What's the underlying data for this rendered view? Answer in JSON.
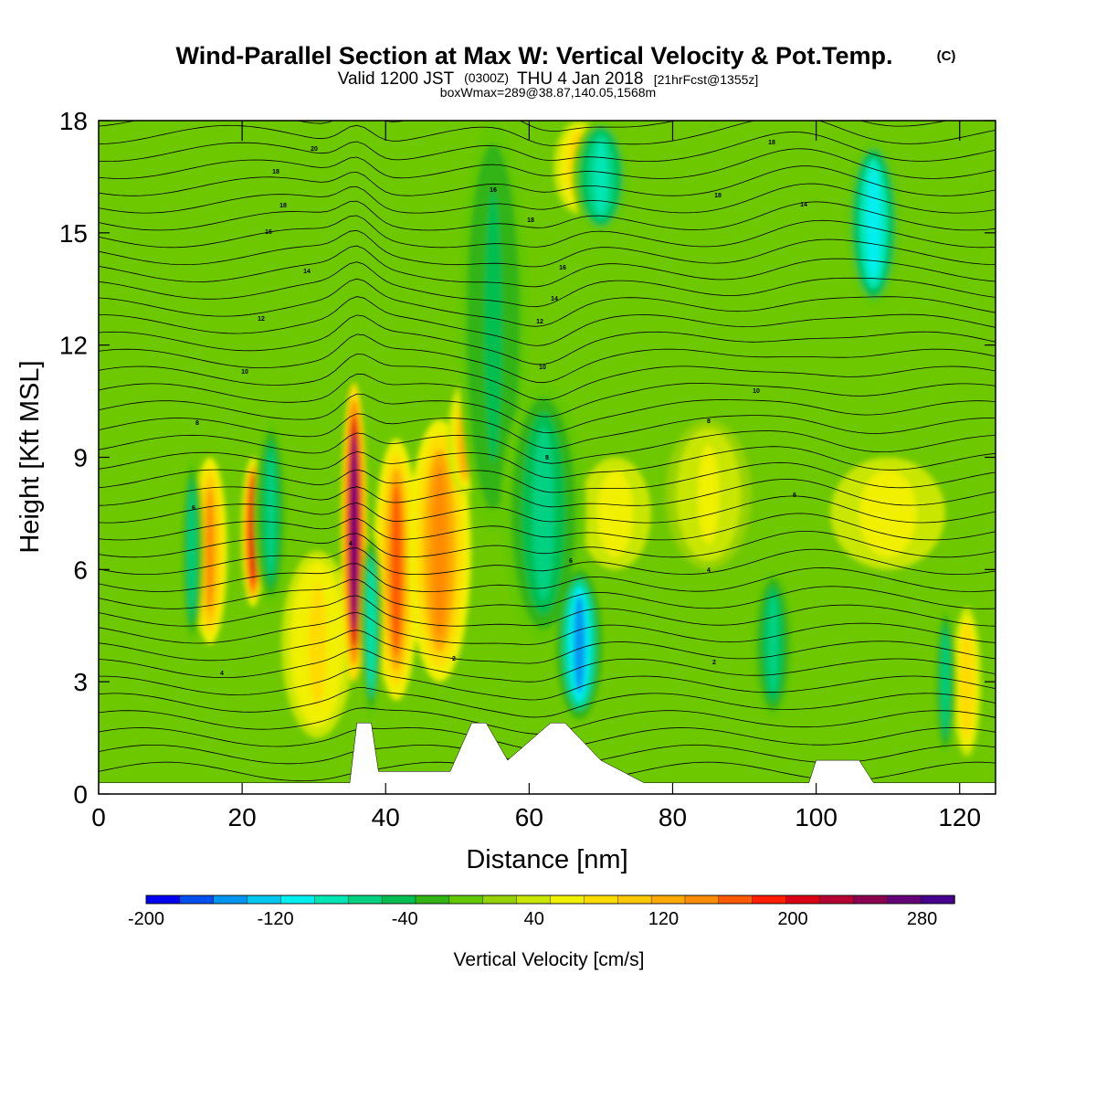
{
  "chart_data": {
    "type": "heatmap",
    "title": "Wind-Parallel Section at Max W: Vertical Velocity & Pot.Temp.",
    "title_mark": "(C)",
    "subtitle_parts": [
      "Valid 1200 JST",
      "(0300Z)",
      "THU 4 Jan 2018",
      "[21hrFcst@1355z]"
    ],
    "subtitle2": "boxWmax=289@38.87,140.05,1568m",
    "xlabel": "Distance [nm]",
    "ylabel": "Height [Kft MSL]",
    "xlim": [
      0,
      125
    ],
    "ylim": [
      0,
      18
    ],
    "xticks": [
      "0",
      "20",
      "40",
      "60",
      "80",
      "100",
      "120"
    ],
    "yticks": [
      "0",
      "3",
      "6",
      "9",
      "12",
      "15",
      "18"
    ],
    "colorbar_label": "Vertical Velocity [cm/s]",
    "colorbar_ticks": [
      "-200",
      "-120",
      "-40",
      "40",
      "120",
      "200",
      "280"
    ],
    "colorbar_range": [
      -200,
      300
    ],
    "colorbar_colors": [
      "#0000f0",
      "#0050f0",
      "#0096f0",
      "#00c8f0",
      "#00f0f0",
      "#00e6b4",
      "#00d282",
      "#00be50",
      "#32b414",
      "#64c800",
      "#96d200",
      "#c8e600",
      "#f0f000",
      "#ffdc00",
      "#ffc800",
      "#ffaa00",
      "#ff8c00",
      "#ff5a00",
      "#ff1e00",
      "#dc0014",
      "#b40032",
      "#8c0050",
      "#640078",
      "#46008c"
    ],
    "background_vv": 20,
    "updrafts": [
      {
        "x": 15.5,
        "z0": 4.0,
        "z1": 9.0,
        "w": 1.2,
        "v": 140
      },
      {
        "x": 21.5,
        "z0": 5.0,
        "z1": 9.0,
        "w": 0.8,
        "v": 210
      },
      {
        "x": 30.5,
        "z0": 1.5,
        "z1": 6.5,
        "w": 2.5,
        "v": 80
      },
      {
        "x": 35.6,
        "z0": 3.0,
        "z1": 11.0,
        "w": 0.9,
        "v": 260
      },
      {
        "x": 41.5,
        "z0": 2.5,
        "z1": 9.5,
        "w": 1.6,
        "v": 160
      },
      {
        "x": 47.5,
        "z0": 3.0,
        "z1": 10.0,
        "w": 2.2,
        "v": 150
      },
      {
        "x": 51.0,
        "z0": 8.0,
        "z1": 11.0,
        "w": 1.2,
        "v": 120
      },
      {
        "x": 67.0,
        "z0": 15.5,
        "z1": 18.0,
        "w": 1.8,
        "v": 100
      },
      {
        "x": 72.0,
        "z0": 6.0,
        "z1": 9.0,
        "w": 2.5,
        "v": 70
      },
      {
        "x": 85.0,
        "z0": 6.0,
        "z1": 10.0,
        "w": 3.0,
        "v": 50
      },
      {
        "x": 110.0,
        "z0": 6.0,
        "z1": 9.0,
        "w": 4.0,
        "v": 60
      },
      {
        "x": 121.0,
        "z0": 1.0,
        "z1": 5.0,
        "w": 1.0,
        "v": 90
      }
    ],
    "downdrafts": [
      {
        "x": 13.0,
        "z0": 4.0,
        "z1": 9.0,
        "w": 0.8,
        "v": -60
      },
      {
        "x": 24.0,
        "z0": 5.0,
        "z1": 10.0,
        "w": 1.2,
        "v": -60
      },
      {
        "x": 38.0,
        "z0": 2.0,
        "z1": 7.0,
        "w": 0.8,
        "v": -80
      },
      {
        "x": 55.0,
        "z0": 7.0,
        "z1": 18.0,
        "w": 2.5,
        "v": -50
      },
      {
        "x": 62.0,
        "z0": 4.0,
        "z1": 11.0,
        "w": 3.0,
        "v": -60
      },
      {
        "x": 67.0,
        "z0": 2.0,
        "z1": 6.0,
        "w": 1.6,
        "v": -140
      },
      {
        "x": 70.0,
        "z0": 15.0,
        "z1": 18.0,
        "w": 2.0,
        "v": -90
      },
      {
        "x": 94.0,
        "z0": 2.0,
        "z1": 6.0,
        "w": 1.5,
        "v": -60
      },
      {
        "x": 108.0,
        "z0": 13.0,
        "z1": 17.5,
        "w": 2.0,
        "v": -110
      },
      {
        "x": 118.0,
        "z0": 1.0,
        "z1": 5.0,
        "w": 0.8,
        "v": -60
      }
    ],
    "terrain": [
      [
        0,
        0.3
      ],
      [
        35,
        0.3
      ],
      [
        36,
        1.9
      ],
      [
        38,
        1.9
      ],
      [
        39,
        0.6
      ],
      [
        49,
        0.6
      ],
      [
        52,
        1.9
      ],
      [
        54,
        1.9
      ],
      [
        57,
        0.9
      ],
      [
        63,
        1.9
      ],
      [
        65,
        1.9
      ],
      [
        70,
        0.9
      ],
      [
        76,
        0.3
      ],
      [
        99,
        0.3
      ],
      [
        100,
        0.9
      ],
      [
        106,
        0.9
      ],
      [
        108,
        0.3
      ],
      [
        125,
        0.3
      ]
    ],
    "contour_label_values": [
      "20",
      "18",
      "18",
      "16",
      "14",
      "12",
      "10",
      "8",
      "6",
      "4",
      "2",
      "16",
      "18",
      "16",
      "14",
      "12",
      "10",
      "8",
      "6",
      "4",
      "18",
      "18",
      "14",
      "10",
      "8",
      "6",
      "4",
      "2"
    ]
  }
}
